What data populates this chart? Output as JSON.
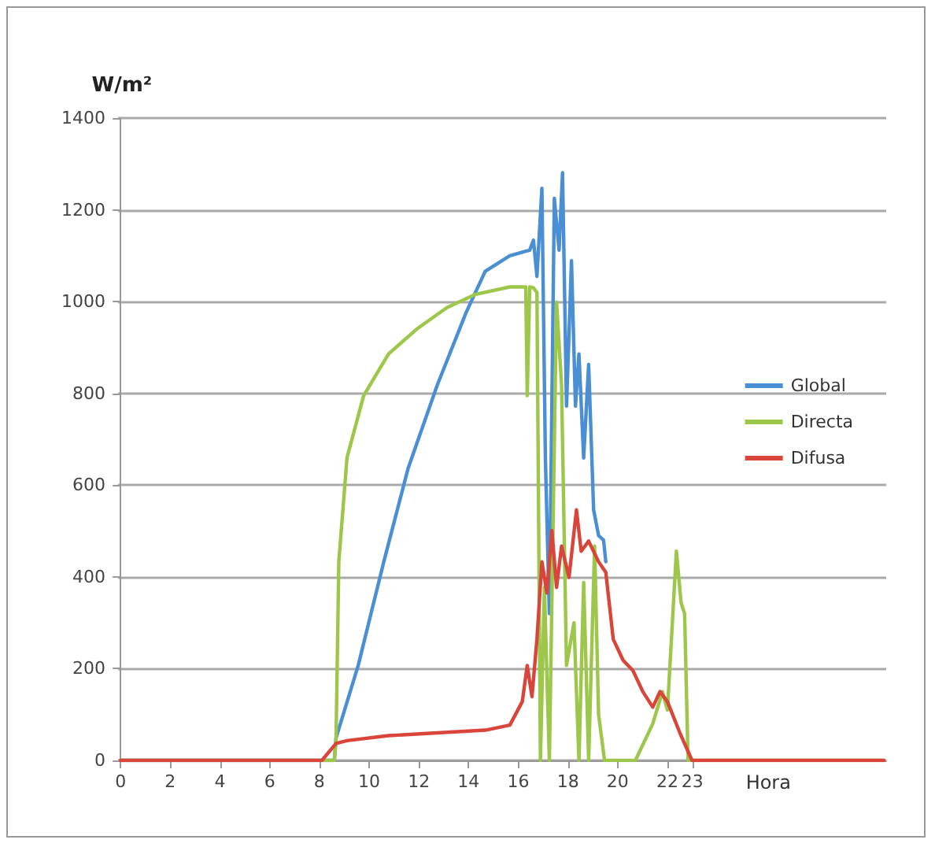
{
  "chart_data": {
    "type": "line",
    "ylabel": "W/m²",
    "xlabel": "Hora",
    "xlim": [
      -0.1,
      30.8
    ],
    "xticks": [
      0,
      2,
      4,
      6,
      8,
      10,
      12,
      14,
      16,
      18,
      20,
      22,
      23
    ],
    "ylim": [
      0,
      1400
    ],
    "yticks": [
      0,
      200,
      400,
      600,
      800,
      1000,
      1200,
      1400
    ],
    "grid": "y",
    "legend": "right",
    "marker": "none",
    "line_style": "solid",
    "series": [
      {
        "name": "Global",
        "color": "#4a8fd4",
        "x": [
          0,
          8.6,
          8.67,
          9.56,
          10.59,
          11.57,
          12.74,
          13.9,
          14.67,
          15.66,
          16.3,
          16.46,
          16.61,
          16.75,
          16.95,
          17.09,
          17.25,
          17.45,
          17.64,
          17.78,
          17.94,
          18.14,
          18.3,
          18.44,
          18.63,
          18.83,
          19.03,
          19.23,
          19.43,
          19.52
        ],
        "values": [
          0,
          0,
          49,
          207,
          433,
          637,
          818,
          976,
          1066,
          1100,
          1110,
          1112,
          1134,
          1055,
          1247,
          659,
          320,
          1225,
          1112,
          1281,
          772,
          1089,
          772,
          886,
          659,
          863,
          546,
          490,
          480,
          433
        ]
      },
      {
        "name": "Directa",
        "color": "#9dc74a",
        "x": [
          0,
          8.6,
          8.67,
          8.78,
          9.11,
          9.78,
          10.78,
          11.96,
          13.13,
          14.29,
          15.66,
          16.3,
          16.36,
          16.46,
          16.61,
          16.75,
          16.89,
          17.05,
          17.25,
          17.54,
          17.74,
          17.94,
          18.24,
          18.44,
          18.63,
          18.83,
          19.07,
          19.23,
          19.47,
          20.71,
          21.41,
          21.8,
          22.0,
          22.36,
          22.55,
          22.69,
          22.83,
          30.71
        ],
        "values": [
          0,
          0,
          49,
          433,
          660,
          795,
          886,
          942,
          987,
          1016,
          1032,
          1032,
          795,
          1032,
          1030,
          1020,
          0,
          377,
          0,
          999,
          818,
          207,
          300,
          0,
          388,
          0,
          467,
          100,
          0,
          0,
          80,
          150,
          110,
          456,
          343,
          320,
          0,
          0
        ]
      },
      {
        "name": "Difusa",
        "color": "#d9453a",
        "x": [
          0,
          8.1,
          8.67,
          9.11,
          10.78,
          12.74,
          14.68,
          15.66,
          16.16,
          16.36,
          16.55,
          16.75,
          16.95,
          17.15,
          17.35,
          17.54,
          17.74,
          18.04,
          18.34,
          18.53,
          18.83,
          19.23,
          19.52,
          19.82,
          20.22,
          20.61,
          21.01,
          21.41,
          21.7,
          22.0,
          22.5,
          22.99,
          30.71
        ],
        "values": [
          0,
          0,
          37,
          43,
          54,
          60,
          66,
          77,
          128,
          207,
          139,
          264,
          433,
          365,
          501,
          377,
          467,
          399,
          546,
          456,
          478,
          433,
          410,
          264,
          218,
          196,
          150,
          116,
          150,
          128,
          60,
          0,
          0
        ]
      }
    ]
  }
}
